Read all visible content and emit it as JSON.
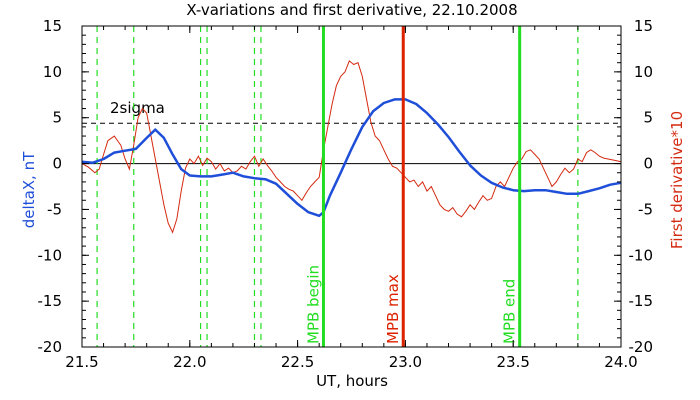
{
  "chart_data": {
    "type": "line",
    "title": "X-variations and first derivative, 22.10.2008",
    "xlabel": "UT, hours",
    "ylabel_left": "deltaX, nT",
    "ylabel_right": "First derivative*10",
    "xlim": [
      21.5,
      24.0
    ],
    "ylim": [
      -20,
      15
    ],
    "x_ticks": [
      "21.5",
      "22.0",
      "22.5",
      "23.0",
      "23.5",
      "24.0"
    ],
    "y_ticks": [
      "-20",
      "-15",
      "-10",
      "-5",
      "0",
      "5",
      "10",
      "15"
    ],
    "grid": false,
    "colors": {
      "deltaX": "#1f4fd8",
      "derivative": "#d42a10",
      "green": "#22dd22",
      "red_line": "#dd2200"
    },
    "series": [
      {
        "key": "deltaX",
        "x": [
          21.5,
          21.55,
          21.6,
          21.65,
          21.7,
          21.75,
          21.8,
          21.84,
          21.88,
          21.92,
          21.96,
          22.0,
          22.05,
          22.1,
          22.15,
          22.2,
          22.25,
          22.3,
          22.35,
          22.4,
          22.45,
          22.5,
          22.55,
          22.6,
          22.62,
          22.65,
          22.7,
          22.75,
          22.8,
          22.85,
          22.9,
          22.95,
          23.0,
          23.05,
          23.1,
          23.15,
          23.2,
          23.25,
          23.3,
          23.35,
          23.4,
          23.45,
          23.5,
          23.55,
          23.6,
          23.65,
          23.7,
          23.75,
          23.8,
          23.85,
          23.9,
          23.95,
          24.0
        ],
        "y": [
          0.2,
          0.1,
          0.5,
          1.2,
          1.4,
          1.6,
          2.8,
          3.7,
          2.8,
          1.0,
          -0.6,
          -1.3,
          -1.4,
          -1.4,
          -1.2,
          -1.0,
          -1.4,
          -1.6,
          -1.7,
          -2.2,
          -3.3,
          -4.4,
          -5.3,
          -5.7,
          -5.3,
          -3.5,
          -1.0,
          1.6,
          4.0,
          5.7,
          6.6,
          7.0,
          7.0,
          6.5,
          5.5,
          4.3,
          2.9,
          1.3,
          -0.2,
          -1.3,
          -2.1,
          -2.6,
          -2.9,
          -3.0,
          -2.9,
          -2.9,
          -3.1,
          -3.3,
          -3.3,
          -3.0,
          -2.7,
          -2.3,
          -2.1
        ]
      },
      {
        "key": "derivative",
        "x": [
          21.5,
          21.53,
          21.56,
          21.58,
          21.6,
          21.62,
          21.65,
          21.68,
          21.7,
          21.72,
          21.74,
          21.76,
          21.78,
          21.8,
          21.82,
          21.84,
          21.86,
          21.88,
          21.9,
          21.92,
          21.94,
          21.96,
          21.98,
          22.0,
          22.02,
          22.04,
          22.06,
          22.08,
          22.1,
          22.12,
          22.14,
          22.16,
          22.18,
          22.2,
          22.22,
          22.24,
          22.26,
          22.28,
          22.3,
          22.32,
          22.34,
          22.36,
          22.38,
          22.4,
          22.42,
          22.44,
          22.46,
          22.48,
          22.5,
          22.52,
          22.54,
          22.56,
          22.58,
          22.6,
          22.62,
          22.64,
          22.66,
          22.68,
          22.7,
          22.72,
          22.74,
          22.76,
          22.78,
          22.8,
          22.82,
          22.84,
          22.86,
          22.88,
          22.9,
          22.92,
          22.94,
          22.96,
          22.98,
          23.0,
          23.02,
          23.04,
          23.06,
          23.08,
          23.1,
          23.12,
          23.14,
          23.16,
          23.18,
          23.2,
          23.22,
          23.24,
          23.26,
          23.28,
          23.3,
          23.32,
          23.34,
          23.36,
          23.38,
          23.4,
          23.42,
          23.44,
          23.46,
          23.48,
          23.5,
          23.52,
          23.54,
          23.56,
          23.58,
          23.6,
          23.62,
          23.64,
          23.66,
          23.68,
          23.7,
          23.72,
          23.74,
          23.76,
          23.78,
          23.8,
          23.82,
          23.84,
          23.86,
          23.88,
          23.9,
          23.92,
          23.94,
          23.96,
          23.98,
          24.0
        ],
        "y": [
          0.0,
          -0.4,
          -1.0,
          -0.6,
          1.0,
          2.5,
          3.0,
          2.0,
          0.5,
          -0.6,
          2.0,
          5.0,
          6.0,
          5.5,
          3.0,
          0.5,
          -2.0,
          -4.5,
          -6.5,
          -7.5,
          -6.0,
          -3.0,
          -0.5,
          0.5,
          0.0,
          0.8,
          -0.2,
          0.6,
          0.2,
          -0.6,
          0.0,
          -0.8,
          -0.5,
          -1.0,
          -0.8,
          -0.3,
          -0.6,
          0.2,
          0.8,
          -0.3,
          0.5,
          -0.2,
          -0.8,
          -1.5,
          -2.0,
          -2.5,
          -2.8,
          -3.0,
          -3.5,
          -4.0,
          -3.2,
          -2.5,
          -2.0,
          -1.5,
          1.5,
          4.0,
          6.5,
          8.5,
          9.5,
          10.0,
          11.2,
          10.8,
          11.0,
          9.5,
          7.0,
          4.5,
          3.0,
          2.5,
          1.5,
          0.5,
          -0.3,
          -0.5,
          -1.0,
          -1.5,
          -2.0,
          -1.8,
          -2.5,
          -2.0,
          -3.0,
          -2.5,
          -3.5,
          -4.5,
          -5.0,
          -5.2,
          -4.8,
          -5.5,
          -5.8,
          -5.2,
          -4.5,
          -5.0,
          -4.2,
          -3.5,
          -4.0,
          -3.8,
          -2.5,
          -2.0,
          -2.5,
          -1.5,
          -0.5,
          0.2,
          0.5,
          1.3,
          1.5,
          1.0,
          0.5,
          -0.5,
          -1.5,
          -2.5,
          -2.0,
          -1.2,
          -0.5,
          -1.0,
          -0.6,
          0.5,
          0.2,
          1.2,
          1.5,
          1.2,
          0.8,
          0.6,
          0.5,
          0.4,
          0.3,
          0.2
        ]
      }
    ],
    "sigma_level": 4.4,
    "sigma_label": "2sigma",
    "dashed_green_lines": [
      21.57,
      21.74,
      22.05,
      22.08,
      22.3,
      22.33,
      23.8
    ],
    "solid_lines": [
      {
        "x": 22.62,
        "label": "MPB begin",
        "color": "#22dd22"
      },
      {
        "x": 22.99,
        "label": "MPB max",
        "color": "#dd2200"
      },
      {
        "x": 23.53,
        "label": "MPB end",
        "color": "#22dd22"
      }
    ]
  }
}
